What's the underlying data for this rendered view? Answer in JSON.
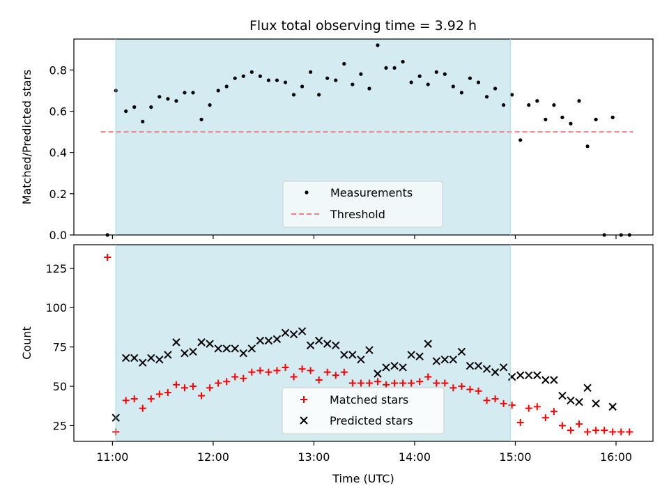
{
  "chart_data": {
    "title": "Flux total observing time = 3.92 h",
    "xlabel": "Time (UTC)",
    "x_ticks": [
      "11:00",
      "12:00",
      "13:00",
      "14:00",
      "15:00",
      "16:00"
    ],
    "x_range": [
      "10:37",
      "16:22"
    ],
    "shaded_interval": [
      "11:02",
      "14:57"
    ],
    "shade_color": "#d4ebf1",
    "panels": [
      {
        "type": "scatter",
        "ylabel": "Matched/Predicted stars",
        "ylim": [
          0,
          0.95
        ],
        "y_ticks": [
          "0.0",
          "0.2",
          "0.4",
          "0.6",
          "0.8"
        ],
        "legend_position": "lower-center",
        "series": [
          {
            "name": "Measurements",
            "marker": "dot",
            "color": "#000000",
            "points": [
              [
                "10:57",
                0.0
              ],
              [
                "11:02",
                0.7
              ],
              [
                "11:08",
                0.6
              ],
              [
                "11:13",
                0.62
              ],
              [
                "11:18",
                0.55
              ],
              [
                "11:23",
                0.62
              ],
              [
                "11:28",
                0.67
              ],
              [
                "11:33",
                0.66
              ],
              [
                "11:38",
                0.65
              ],
              [
                "11:43",
                0.69
              ],
              [
                "11:48",
                0.69
              ],
              [
                "11:53",
                0.56
              ],
              [
                "11:58",
                0.63
              ],
              [
                "12:03",
                0.7
              ],
              [
                "12:08",
                0.72
              ],
              [
                "12:13",
                0.76
              ],
              [
                "12:18",
                0.77
              ],
              [
                "12:23",
                0.79
              ],
              [
                "12:28",
                0.77
              ],
              [
                "12:33",
                0.75
              ],
              [
                "12:38",
                0.75
              ],
              [
                "12:43",
                0.74
              ],
              [
                "12:48",
                0.68
              ],
              [
                "12:53",
                0.72
              ],
              [
                "12:58",
                0.79
              ],
              [
                "13:03",
                0.68
              ],
              [
                "13:08",
                0.76
              ],
              [
                "13:13",
                0.75
              ],
              [
                "13:18",
                0.83
              ],
              [
                "13:23",
                0.73
              ],
              [
                "13:28",
                0.78
              ],
              [
                "13:33",
                0.71
              ],
              [
                "13:38",
                0.92
              ],
              [
                "13:43",
                0.81
              ],
              [
                "13:48",
                0.81
              ],
              [
                "13:53",
                0.84
              ],
              [
                "13:58",
                0.74
              ],
              [
                "14:03",
                0.77
              ],
              [
                "14:08",
                0.73
              ],
              [
                "14:13",
                0.79
              ],
              [
                "14:18",
                0.78
              ],
              [
                "14:23",
                0.72
              ],
              [
                "14:28",
                0.69
              ],
              [
                "14:33",
                0.76
              ],
              [
                "14:38",
                0.74
              ],
              [
                "14:43",
                0.67
              ],
              [
                "14:48",
                0.71
              ],
              [
                "14:53",
                0.63
              ],
              [
                "14:58",
                0.68
              ],
              [
                "15:03",
                0.46
              ],
              [
                "15:08",
                0.63
              ],
              [
                "15:13",
                0.65
              ],
              [
                "15:18",
                0.56
              ],
              [
                "15:23",
                0.63
              ],
              [
                "15:28",
                0.57
              ],
              [
                "15:33",
                0.54
              ],
              [
                "15:38",
                0.65
              ],
              [
                "15:43",
                0.43
              ],
              [
                "15:48",
                0.56
              ],
              [
                "15:53",
                0.0
              ],
              [
                "15:58",
                0.57
              ],
              [
                "16:03",
                0.0
              ],
              [
                "16:08",
                0.0
              ]
            ]
          },
          {
            "name": "Threshold",
            "marker": "dashed-line",
            "color": "#f08080",
            "points": [
              [
                "10:53",
                0.5
              ],
              [
                "16:10",
                0.5
              ]
            ]
          }
        ]
      },
      {
        "type": "scatter",
        "ylabel": "Count",
        "ylim": [
          15,
          140
        ],
        "y_ticks": [
          "25",
          "50",
          "75",
          "100",
          "125"
        ],
        "legend_position": "lower-center",
        "series": [
          {
            "name": "Matched stars",
            "marker": "plus",
            "color": "#ff0000",
            "points": [
              [
                "10:57",
                132
              ],
              [
                "11:02",
                21
              ],
              [
                "11:08",
                41
              ],
              [
                "11:13",
                42
              ],
              [
                "11:18",
                36
              ],
              [
                "11:23",
                42
              ],
              [
                "11:28",
                45
              ],
              [
                "11:33",
                46
              ],
              [
                "11:38",
                51
              ],
              [
                "11:43",
                49
              ],
              [
                "11:48",
                50
              ],
              [
                "11:53",
                44
              ],
              [
                "11:58",
                49
              ],
              [
                "12:03",
                52
              ],
              [
                "12:08",
                53
              ],
              [
                "12:13",
                56
              ],
              [
                "12:18",
                55
              ],
              [
                "12:23",
                59
              ],
              [
                "12:28",
                60
              ],
              [
                "12:33",
                59
              ],
              [
                "12:38",
                60
              ],
              [
                "12:43",
                62
              ],
              [
                "12:48",
                56
              ],
              [
                "12:53",
                61
              ],
              [
                "12:58",
                60
              ],
              [
                "13:03",
                54
              ],
              [
                "13:08",
                59
              ],
              [
                "13:13",
                57
              ],
              [
                "13:18",
                59
              ],
              [
                "13:23",
                52
              ],
              [
                "13:28",
                52
              ],
              [
                "13:33",
                52
              ],
              [
                "13:38",
                53
              ],
              [
                "13:43",
                51
              ],
              [
                "13:48",
                52
              ],
              [
                "13:53",
                52
              ],
              [
                "13:58",
                52
              ],
              [
                "14:03",
                53
              ],
              [
                "14:08",
                56
              ],
              [
                "14:13",
                52
              ],
              [
                "14:18",
                52
              ],
              [
                "14:23",
                49
              ],
              [
                "14:28",
                50
              ],
              [
                "14:33",
                48
              ],
              [
                "14:38",
                47
              ],
              [
                "14:43",
                41
              ],
              [
                "14:48",
                42
              ],
              [
                "14:53",
                39
              ],
              [
                "14:58",
                38
              ],
              [
                "15:03",
                27
              ],
              [
                "15:08",
                36
              ],
              [
                "15:13",
                37
              ],
              [
                "15:18",
                30
              ],
              [
                "15:23",
                34
              ],
              [
                "15:28",
                25
              ],
              [
                "15:33",
                22
              ],
              [
                "15:38",
                26
              ],
              [
                "15:43",
                21
              ],
              [
                "15:48",
                22
              ],
              [
                "15:53",
                22
              ],
              [
                "15:58",
                21
              ],
              [
                "16:03",
                21
              ],
              [
                "16:08",
                21
              ]
            ]
          },
          {
            "name": "Predicted stars",
            "marker": "x",
            "color": "#000000",
            "points": [
              [
                "11:02",
                30
              ],
              [
                "11:08",
                68
              ],
              [
                "11:13",
                68
              ],
              [
                "11:18",
                65
              ],
              [
                "11:23",
                68
              ],
              [
                "11:28",
                67
              ],
              [
                "11:33",
                70
              ],
              [
                "11:38",
                78
              ],
              [
                "11:43",
                71
              ],
              [
                "11:48",
                72
              ],
              [
                "11:53",
                78
              ],
              [
                "11:58",
                77
              ],
              [
                "12:03",
                74
              ],
              [
                "12:08",
                74
              ],
              [
                "12:13",
                74
              ],
              [
                "12:18",
                71
              ],
              [
                "12:23",
                74
              ],
              [
                "12:28",
                79
              ],
              [
                "12:33",
                79
              ],
              [
                "12:38",
                80
              ],
              [
                "12:43",
                84
              ],
              [
                "12:48",
                83
              ],
              [
                "12:53",
                85
              ],
              [
                "12:58",
                76
              ],
              [
                "13:03",
                79
              ],
              [
                "13:08",
                77
              ],
              [
                "13:13",
                76
              ],
              [
                "13:18",
                70
              ],
              [
                "13:23",
                70
              ],
              [
                "13:28",
                67
              ],
              [
                "13:33",
                73
              ],
              [
                "13:38",
                58
              ],
              [
                "13:43",
                62
              ],
              [
                "13:48",
                63
              ],
              [
                "13:53",
                62
              ],
              [
                "13:58",
                70
              ],
              [
                "14:03",
                69
              ],
              [
                "14:08",
                77
              ],
              [
                "14:13",
                66
              ],
              [
                "14:18",
                67
              ],
              [
                "14:23",
                67
              ],
              [
                "14:28",
                72
              ],
              [
                "14:33",
                63
              ],
              [
                "14:38",
                63
              ],
              [
                "14:43",
                61
              ],
              [
                "14:48",
                59
              ],
              [
                "14:53",
                62
              ],
              [
                "14:58",
                56
              ],
              [
                "15:03",
                57
              ],
              [
                "15:08",
                57
              ],
              [
                "15:13",
                57
              ],
              [
                "15:18",
                54
              ],
              [
                "15:23",
                54
              ],
              [
                "15:28",
                44
              ],
              [
                "15:33",
                41
              ],
              [
                "15:38",
                40
              ],
              [
                "15:43",
                49
              ],
              [
                "15:48",
                39
              ],
              [
                "15:58",
                37
              ]
            ]
          }
        ]
      }
    ]
  }
}
